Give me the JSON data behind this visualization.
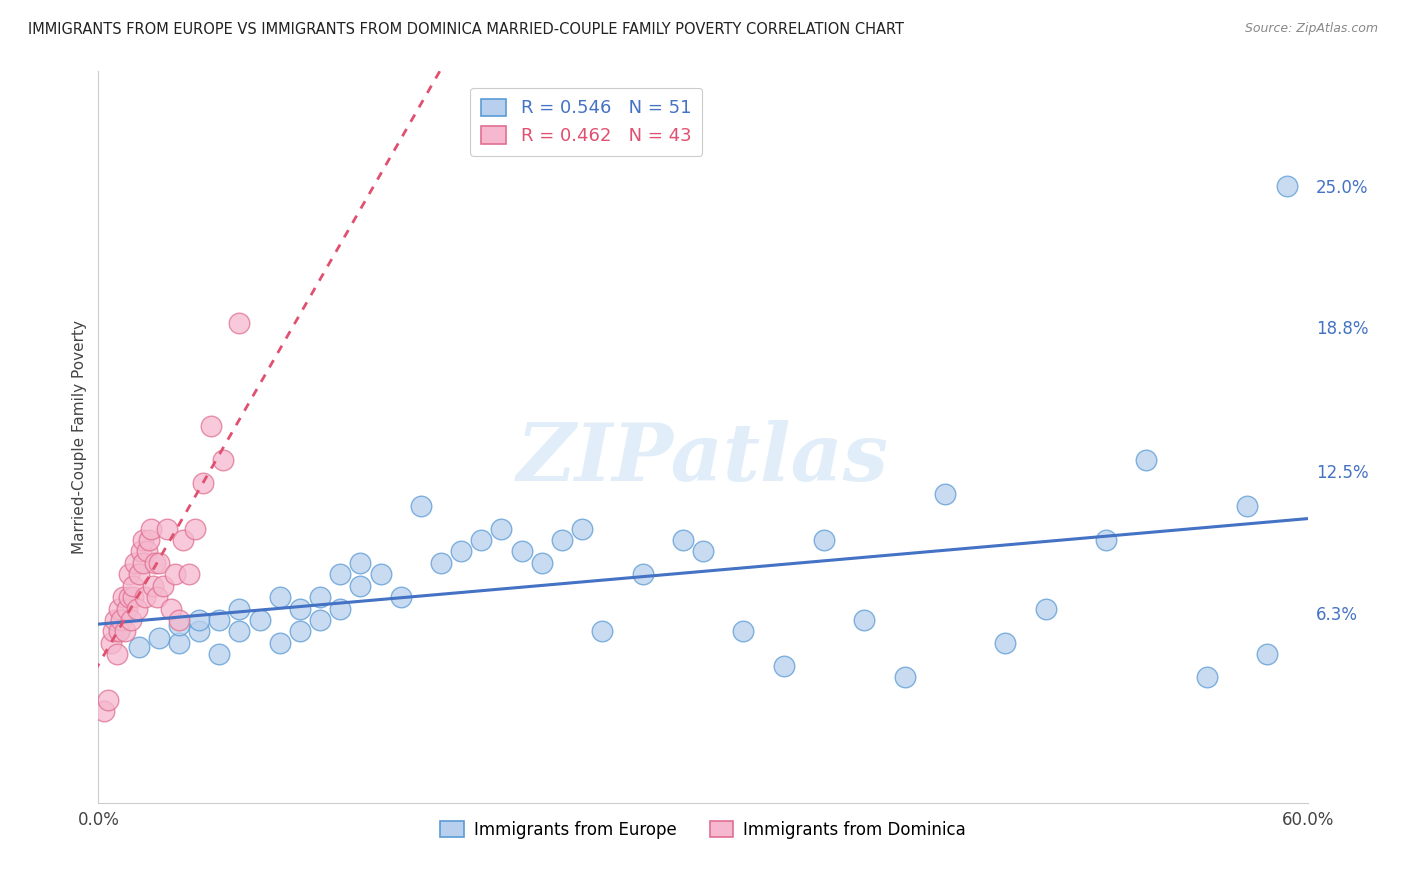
{
  "title": "IMMIGRANTS FROM EUROPE VS IMMIGRANTS FROM DOMINICA MARRIED-COUPLE FAMILY POVERTY CORRELATION CHART",
  "source": "Source: ZipAtlas.com",
  "ylabel": "Married-Couple Family Poverty",
  "xlim": [
    0.0,
    0.6
  ],
  "ylim": [
    -0.02,
    0.3
  ],
  "yticks": [
    0.063,
    0.125,
    0.188,
    0.25
  ],
  "ytick_labels": [
    "6.3%",
    "12.5%",
    "18.8%",
    "25.0%"
  ],
  "xticks": [
    0.0,
    0.1,
    0.2,
    0.3,
    0.4,
    0.5,
    0.6
  ],
  "xtick_labels": [
    "0.0%",
    "",
    "",
    "",
    "",
    "",
    "60.0%"
  ],
  "europe_color": "#b8d0ed",
  "dominica_color": "#f5b8ce",
  "europe_edge_color": "#5b9bd5",
  "dominica_edge_color": "#e07090",
  "trend_europe_color": "#4472c4",
  "trend_dominica_color": "#e05070",
  "R_europe": 0.546,
  "N_europe": 51,
  "R_dominica": 0.462,
  "N_dominica": 43,
  "legend_europe_label": "Immigrants from Europe",
  "legend_dominica_label": "Immigrants from Dominica",
  "watermark": "ZIPatlas",
  "europe_x": [
    0.01,
    0.02,
    0.03,
    0.04,
    0.04,
    0.05,
    0.05,
    0.06,
    0.06,
    0.07,
    0.07,
    0.08,
    0.09,
    0.09,
    0.1,
    0.1,
    0.11,
    0.11,
    0.12,
    0.12,
    0.13,
    0.13,
    0.14,
    0.15,
    0.16,
    0.17,
    0.18,
    0.19,
    0.2,
    0.21,
    0.22,
    0.23,
    0.24,
    0.25,
    0.27,
    0.29,
    0.3,
    0.32,
    0.34,
    0.36,
    0.38,
    0.4,
    0.42,
    0.45,
    0.47,
    0.5,
    0.52,
    0.55,
    0.57,
    0.58,
    0.59
  ],
  "europe_y": [
    0.055,
    0.048,
    0.052,
    0.05,
    0.058,
    0.055,
    0.06,
    0.045,
    0.06,
    0.055,
    0.065,
    0.06,
    0.05,
    0.07,
    0.055,
    0.065,
    0.07,
    0.06,
    0.08,
    0.065,
    0.075,
    0.085,
    0.08,
    0.07,
    0.11,
    0.085,
    0.09,
    0.095,
    0.1,
    0.09,
    0.085,
    0.095,
    0.1,
    0.055,
    0.08,
    0.095,
    0.09,
    0.055,
    0.04,
    0.095,
    0.06,
    0.035,
    0.115,
    0.05,
    0.065,
    0.095,
    0.13,
    0.035,
    0.11,
    0.045,
    0.25
  ],
  "dominica_x": [
    0.003,
    0.005,
    0.006,
    0.007,
    0.008,
    0.009,
    0.01,
    0.01,
    0.011,
    0.012,
    0.013,
    0.014,
    0.015,
    0.015,
    0.016,
    0.017,
    0.017,
    0.018,
    0.019,
    0.02,
    0.021,
    0.022,
    0.022,
    0.023,
    0.024,
    0.025,
    0.026,
    0.027,
    0.028,
    0.029,
    0.03,
    0.032,
    0.034,
    0.036,
    0.038,
    0.04,
    0.042,
    0.045,
    0.048,
    0.052,
    0.056,
    0.062,
    0.07
  ],
  "dominica_y": [
    0.02,
    0.025,
    0.05,
    0.055,
    0.06,
    0.045,
    0.055,
    0.065,
    0.06,
    0.07,
    0.055,
    0.065,
    0.07,
    0.08,
    0.06,
    0.07,
    0.075,
    0.085,
    0.065,
    0.08,
    0.09,
    0.085,
    0.095,
    0.07,
    0.09,
    0.095,
    0.1,
    0.075,
    0.085,
    0.07,
    0.085,
    0.075,
    0.1,
    0.065,
    0.08,
    0.06,
    0.095,
    0.08,
    0.1,
    0.12,
    0.145,
    0.13,
    0.19
  ]
}
